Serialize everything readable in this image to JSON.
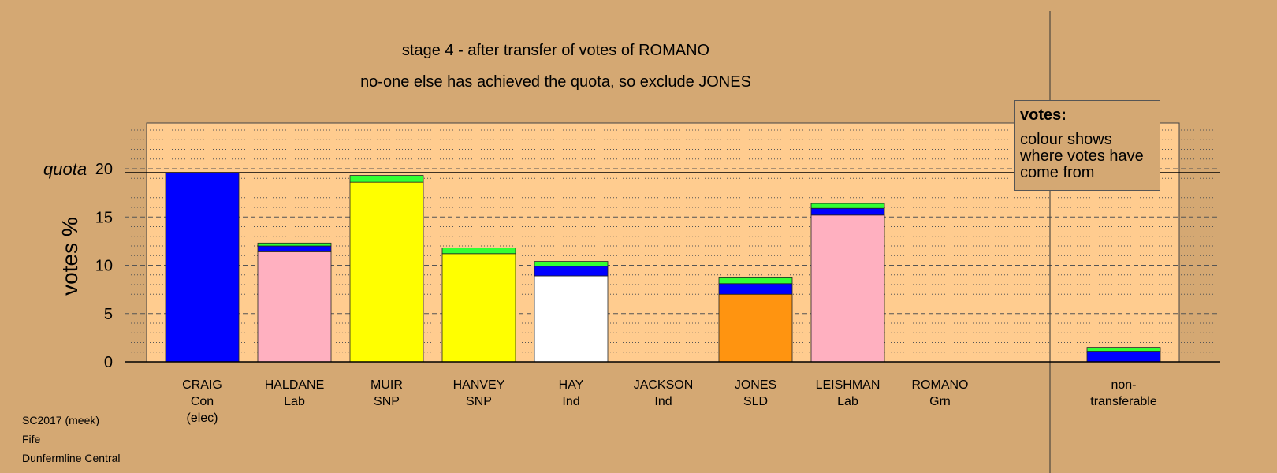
{
  "titles": {
    "line1": "stage 4 - after transfer of votes of ROMANO",
    "line2": "no-one else has achieved the quota, so exclude JONES"
  },
  "legend": {
    "title": "votes:",
    "body": "colour shows where votes have come from"
  },
  "footer": {
    "election": "SC2017 (meek)",
    "council": "Fife",
    "ward": "Dunfermline Central"
  },
  "colors": {
    "background": "#D4A873",
    "plot_area": "#FFCC8F",
    "Con": "#0000FF",
    "Lab": "#FFB0C0",
    "SNP": "#FFFF00",
    "Ind": "#FFFFFF",
    "SLD": "#FF9410",
    "Grn": "#33FF33"
  },
  "chart_data": {
    "type": "bar",
    "stacked": true,
    "ylabel": "votes %",
    "ylim": [
      0,
      24
    ],
    "yticks": [
      0,
      5,
      10,
      15,
      20
    ],
    "quota": {
      "value": 19.6,
      "label": "quota"
    },
    "grid": "dashed major every 5, dotted minor every 1",
    "bars": [
      {
        "name": "CRAIG",
        "party": "Con",
        "note": "(elec)",
        "segments": [
          {
            "from": "Con",
            "value": 19.6
          }
        ]
      },
      {
        "name": "HALDANE",
        "party": "Lab",
        "note": "",
        "segments": [
          {
            "from": "Lab",
            "value": 11.4
          },
          {
            "from": "Con",
            "value": 0.6
          },
          {
            "from": "Grn",
            "value": 0.3
          }
        ]
      },
      {
        "name": "MUIR",
        "party": "SNP",
        "note": "",
        "segments": [
          {
            "from": "SNP",
            "value": 18.6
          },
          {
            "from": "Grn",
            "value": 0.7
          }
        ]
      },
      {
        "name": "HANVEY",
        "party": "SNP",
        "note": "",
        "segments": [
          {
            "from": "SNP",
            "value": 11.2
          },
          {
            "from": "Grn",
            "value": 0.6
          }
        ]
      },
      {
        "name": "HAY",
        "party": "Ind",
        "note": "",
        "segments": [
          {
            "from": "Ind",
            "value": 8.9
          },
          {
            "from": "Con",
            "value": 1.0
          },
          {
            "from": "Grn",
            "value": 0.5
          }
        ]
      },
      {
        "name": "JACKSON",
        "party": "Ind",
        "note": "",
        "segments": []
      },
      {
        "name": "JONES",
        "party": "SLD",
        "note": "",
        "segments": [
          {
            "from": "SLD",
            "value": 7.0
          },
          {
            "from": "Con",
            "value": 1.1
          },
          {
            "from": "Grn",
            "value": 0.6
          }
        ]
      },
      {
        "name": "LEISHMAN",
        "party": "Lab",
        "note": "",
        "segments": [
          {
            "from": "Lab",
            "value": 15.2
          },
          {
            "from": "Con",
            "value": 0.7
          },
          {
            "from": "Grn",
            "value": 0.5
          }
        ]
      },
      {
        "name": "ROMANO",
        "party": "Grn",
        "note": "",
        "segments": []
      }
    ],
    "nontransferable": {
      "label_line1": "non-",
      "label_line2": "transferable",
      "segments": [
        {
          "from": "Con",
          "value": 1.1
        },
        {
          "from": "Grn",
          "value": 0.4
        }
      ]
    }
  }
}
